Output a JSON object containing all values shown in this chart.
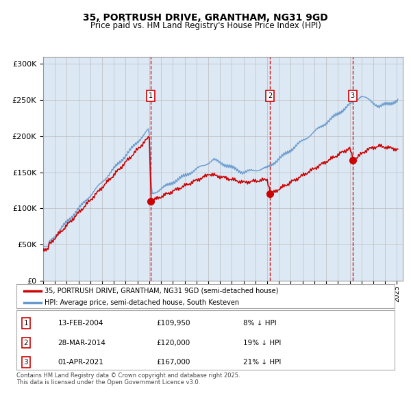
{
  "title": "35, PORTRUSH DRIVE, GRANTHAM, NG31 9GD",
  "subtitle": "Price paid vs. HM Land Registry's House Price Index (HPI)",
  "background_color": "#dce9f5",
  "red_line_color": "#cc0000",
  "blue_line_color": "#6699cc",
  "grid_color": "#bbbbbb",
  "dashed_line_color": "#cc0000",
  "ylim": [
    0,
    310000
  ],
  "yticks": [
    0,
    50000,
    100000,
    150000,
    200000,
    250000,
    300000
  ],
  "xstart": 1995.0,
  "xend": 2025.5,
  "sale_dates": [
    2004.1,
    2014.24,
    2021.25
  ],
  "sale_prices": [
    109950,
    120000,
    167000
  ],
  "legend_entries": [
    "35, PORTRUSH DRIVE, GRANTHAM, NG31 9GD (semi-detached house)",
    "HPI: Average price, semi-detached house, South Kesteven"
  ],
  "table_rows": [
    [
      "1",
      "13-FEB-2004",
      "£109,950",
      "8% ↓ HPI"
    ],
    [
      "2",
      "28-MAR-2014",
      "£120,000",
      "19% ↓ HPI"
    ],
    [
      "3",
      "01-APR-2021",
      "£167,000",
      "21% ↓ HPI"
    ]
  ],
  "footer": "Contains HM Land Registry data © Crown copyright and database right 2025.\nThis data is licensed under the Open Government Licence v3.0."
}
